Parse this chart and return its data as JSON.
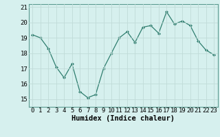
{
  "x": [
    0,
    1,
    2,
    3,
    4,
    5,
    6,
    7,
    8,
    9,
    10,
    11,
    12,
    13,
    14,
    15,
    16,
    17,
    18,
    19,
    20,
    21,
    22,
    23
  ],
  "y": [
    19.2,
    19.0,
    18.3,
    17.1,
    16.4,
    17.3,
    15.5,
    15.1,
    15.3,
    17.0,
    18.0,
    19.0,
    19.4,
    18.7,
    19.7,
    19.8,
    19.3,
    20.7,
    19.9,
    20.1,
    19.8,
    18.8,
    18.2,
    17.9
  ],
  "line_color": "#2e7d6e",
  "marker": "D",
  "marker_size": 2,
  "bg_color": "#d6f0ee",
  "grid_color": "#c0dbd8",
  "xlabel": "Humidex (Indice chaleur)",
  "xlim": [
    -0.5,
    23.5
  ],
  "ylim": [
    14.5,
    21.2
  ],
  "yticks": [
    15,
    16,
    17,
    18,
    19,
    20,
    21
  ],
  "xticks": [
    0,
    1,
    2,
    3,
    4,
    5,
    6,
    7,
    8,
    9,
    10,
    11,
    12,
    13,
    14,
    15,
    16,
    17,
    18,
    19,
    20,
    21,
    22,
    23
  ],
  "tick_fontsize": 6.5,
  "xlabel_fontsize": 7.5
}
